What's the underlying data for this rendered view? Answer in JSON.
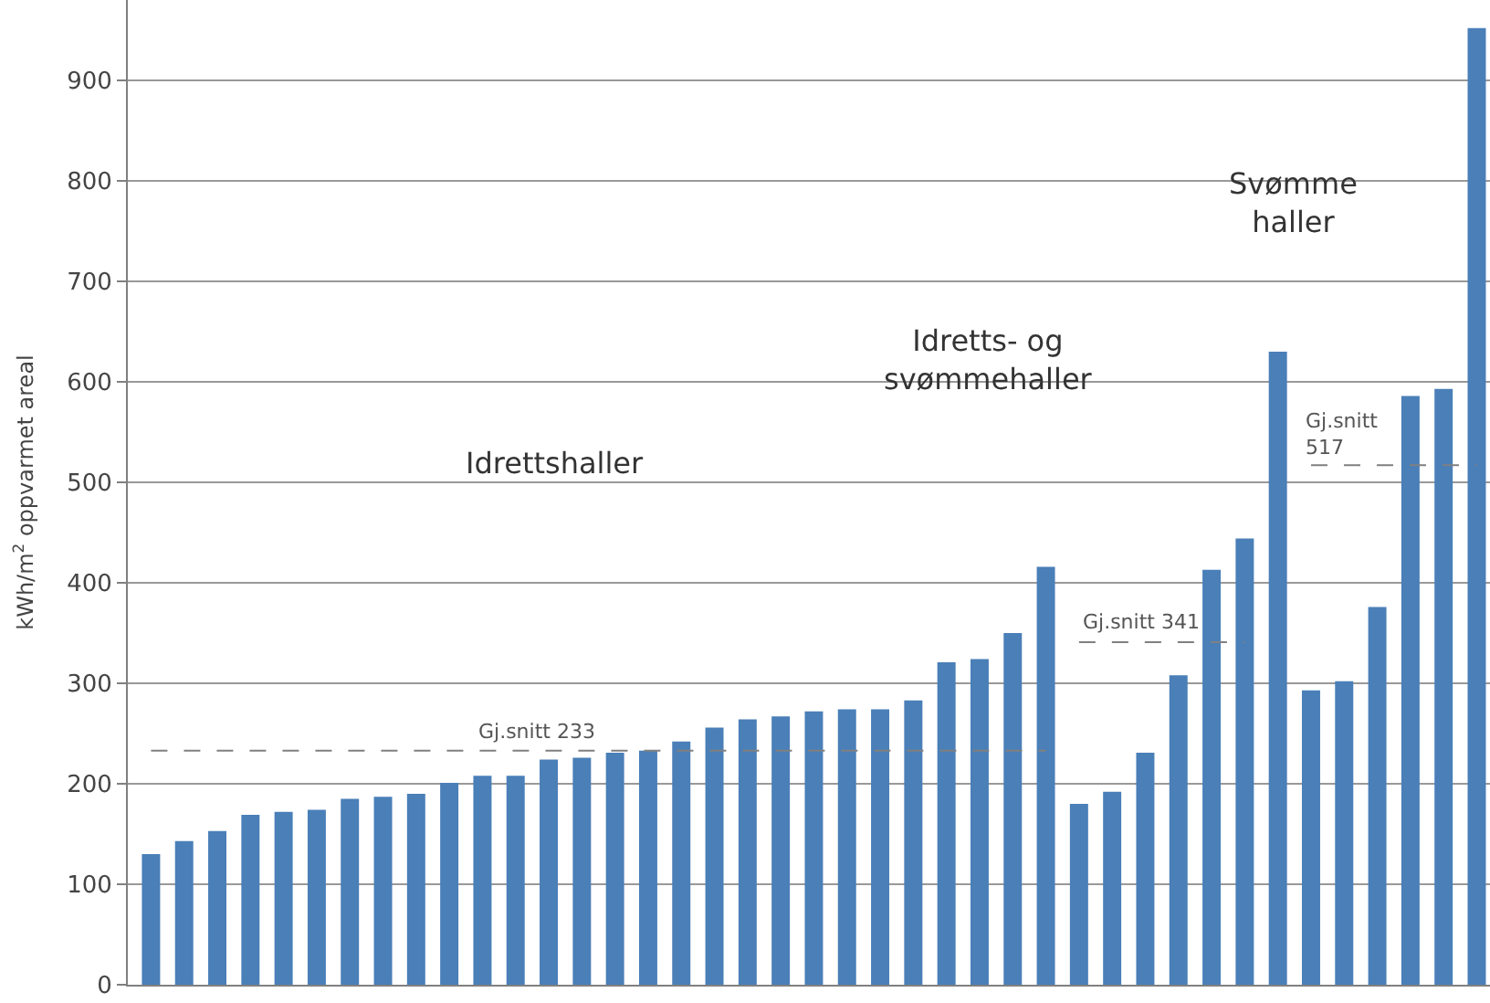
{
  "chart_data": {
    "type": "bar",
    "ylabel": "kWh/m$^{2}$ oppvarmet areal",
    "categories": [
      null,
      null,
      null,
      null,
      null,
      null,
      null,
      null,
      null,
      null,
      null,
      null,
      null,
      null,
      null,
      null,
      null,
      null,
      null,
      null,
      null,
      null,
      null,
      null,
      null,
      null,
      null,
      null,
      null,
      null,
      null,
      null,
      null,
      null,
      null,
      null,
      null,
      null,
      null,
      null,
      null
    ],
    "series": [
      {
        "color": "#4a7fb8",
        "values": [
          130,
          143,
          153,
          169,
          172,
          174,
          185,
          187,
          190,
          201,
          208,
          208,
          224,
          226,
          231,
          233,
          242,
          256,
          264,
          267,
          272,
          274,
          274,
          283,
          321,
          324,
          350,
          416,
          180,
          192,
          231,
          308,
          413,
          444,
          630,
          293,
          302,
          376,
          586,
          593,
          952
        ]
      },
      {
        "type": "line",
        "name": "Gj.snitt 233",
        "color": "#808080",
        "line_style": "dashed",
        "marker": "none",
        "values": [
          233,
          233,
          233,
          233,
          233,
          233,
          233,
          233,
          233,
          233,
          233,
          233,
          233,
          233,
          233,
          233,
          233,
          233,
          233,
          233,
          233,
          233,
          233,
          233,
          233,
          233,
          233,
          233,
          null,
          null,
          null,
          null,
          null,
          null,
          null,
          null,
          null,
          null,
          null,
          null,
          null
        ]
      },
      {
        "type": "line",
        "name": "Gj.snitt 341",
        "color": "#808080",
        "line_style": "dashed",
        "marker": "none",
        "values": [
          null,
          null,
          null,
          null,
          null,
          null,
          null,
          null,
          null,
          null,
          null,
          null,
          null,
          null,
          null,
          null,
          null,
          null,
          null,
          null,
          null,
          null,
          null,
          null,
          null,
          null,
          null,
          null,
          341,
          341,
          341,
          341,
          341,
          341,
          null,
          null,
          null,
          null,
          null,
          null,
          null
        ]
      },
      {
        "type": "line",
        "name": "Gj.snitt\n517",
        "color": "#808080",
        "line_style": "dashed",
        "marker": "none",
        "values": [
          null,
          null,
          null,
          null,
          null,
          null,
          null,
          null,
          null,
          null,
          null,
          null,
          null,
          null,
          null,
          null,
          null,
          null,
          null,
          null,
          null,
          null,
          null,
          null,
          null,
          null,
          null,
          null,
          null,
          null,
          null,
          null,
          null,
          null,
          null,
          517,
          517,
          517,
          517,
          517,
          517
        ]
      }
    ],
    "annotations": [
      "Idrettshaller",
      "Idretts- og\nsvømmehaller",
      "Svømme\nhaller"
    ],
    "ylim": [
      0,
      980
    ],
    "yticks": [
      0,
      100,
      200,
      300,
      400,
      500,
      600,
      700,
      800,
      900
    ],
    "grid": "y",
    "legend": false
  }
}
